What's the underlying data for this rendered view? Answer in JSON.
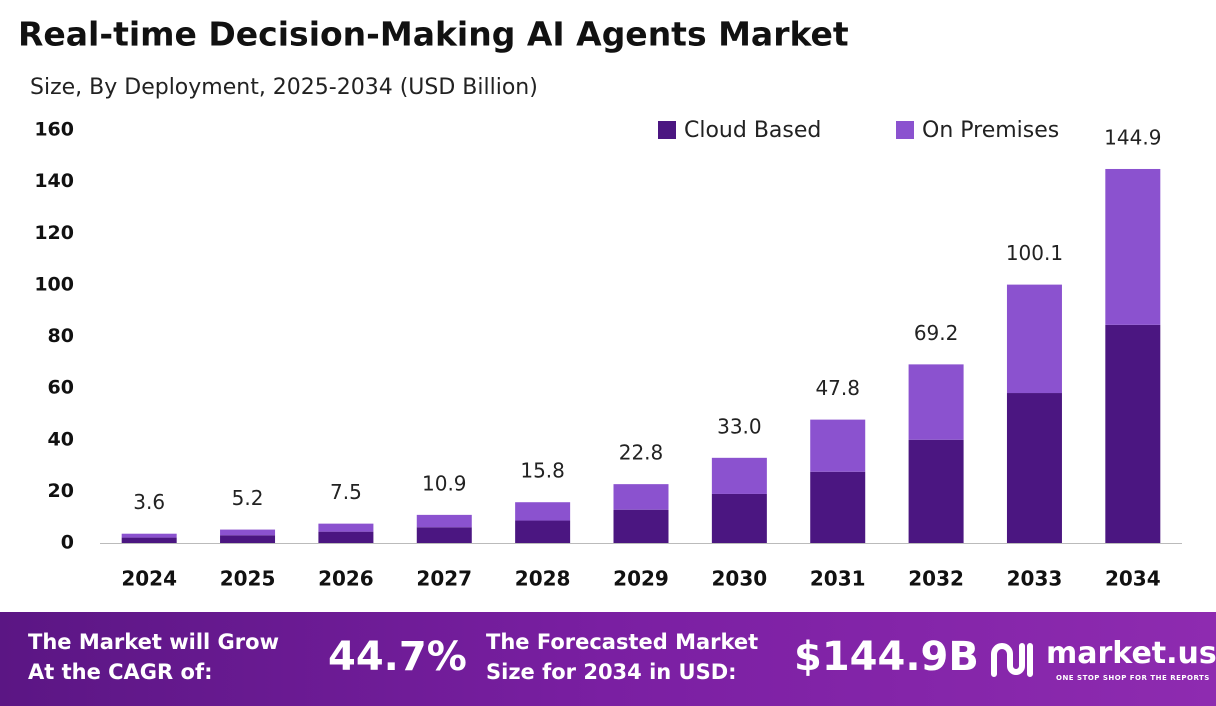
{
  "chart_data": {
    "type": "stacked_bar",
    "title": "Real-time Decision-Making AI Agents Market",
    "subtitle": "Size, By Deployment, 2025-2034 (USD Billion)",
    "categories": [
      "2024",
      "2025",
      "2026",
      "2027",
      "2028",
      "2029",
      "2030",
      "2031",
      "2032",
      "2033",
      "2034"
    ],
    "series": [
      {
        "name": "Cloud Based",
        "color": "#4b1681",
        "values": [
          2.1,
          3.0,
          4.4,
          6.1,
          8.7,
          12.9,
          19.0,
          27.6,
          40.0,
          58.1,
          84.5
        ]
      },
      {
        "name": "On Premises",
        "color": "#8b52cf",
        "values": [
          1.5,
          2.2,
          3.1,
          4.8,
          7.1,
          9.9,
          14.0,
          20.2,
          29.2,
          42.0,
          60.4
        ]
      }
    ],
    "totals": [
      3.6,
      5.2,
      7.5,
      10.9,
      15.8,
      22.8,
      33.0,
      47.8,
      69.2,
      100.1,
      144.9
    ],
    "total_labels": [
      "3.6",
      "5.2",
      "7.5",
      "10.9",
      "15.8",
      "22.8",
      "33.0",
      "47.8",
      "69.2",
      "100.1",
      "144.9"
    ],
    "ylim": [
      0,
      160
    ],
    "yticks": [
      0,
      20,
      40,
      60,
      80,
      100,
      120,
      140,
      160
    ],
    "grid": false,
    "legend": "top-right"
  },
  "footer": {
    "cagr_text": [
      "The Market will Grow",
      "At the CAGR of:"
    ],
    "cagr": "44.7%",
    "forecast_text": [
      "The Forecasted Market",
      "Size for 2034 in USD:"
    ],
    "forecast": "$144.9B",
    "brand": "market.us",
    "tagline": "ONE STOP SHOP FOR THE REPORTS"
  }
}
